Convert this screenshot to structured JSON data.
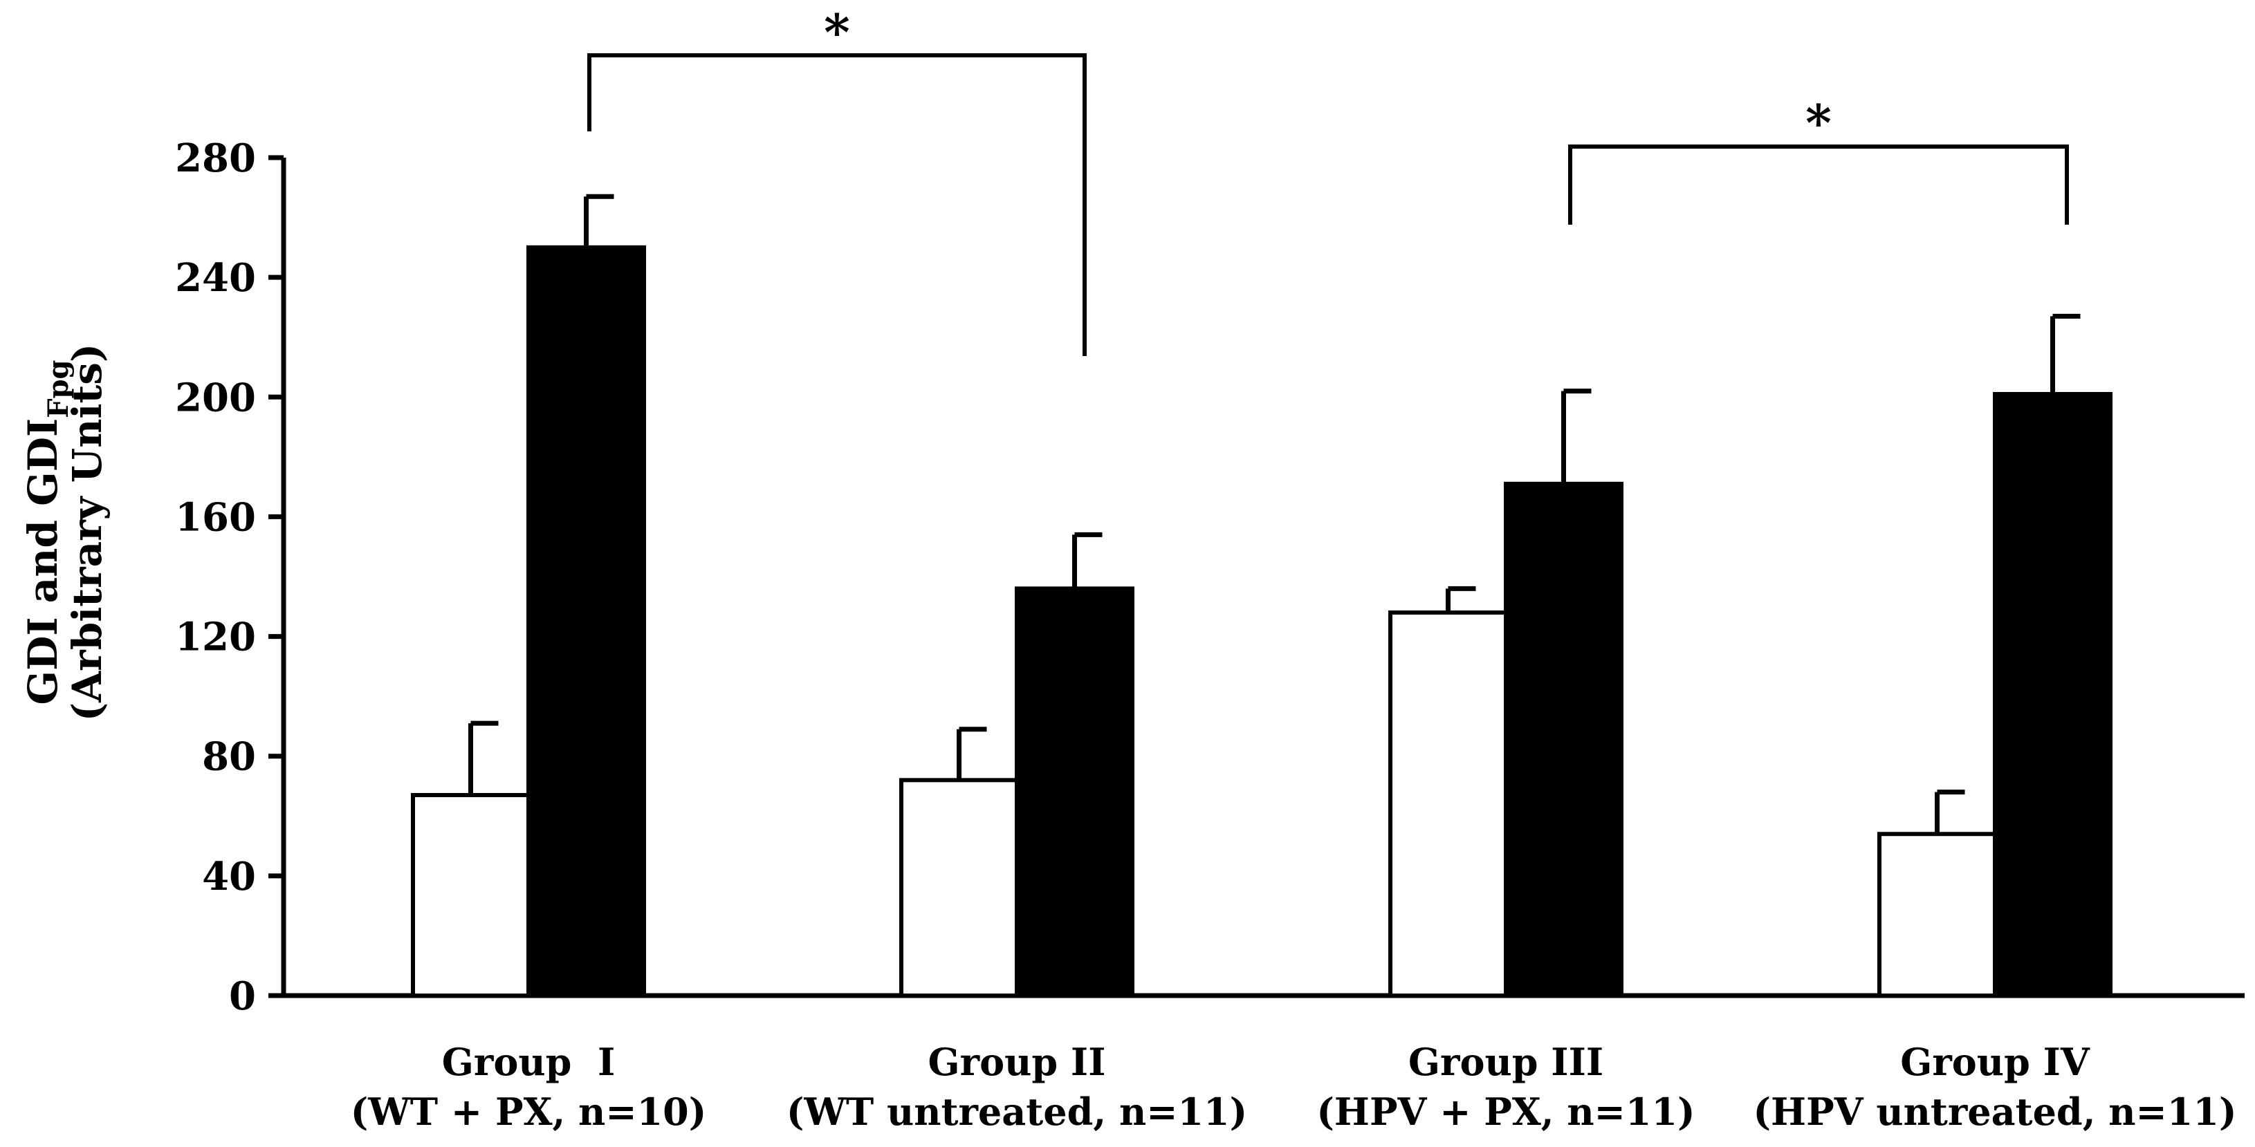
{
  "chart_data": {
    "type": "bar",
    "title": "",
    "ylabel": {
      "line1_main": "GDI and GDI",
      "line1_subscript": "Fpg",
      "line2": "(Arbitrary Units)"
    },
    "xlabel": "",
    "ylim": [
      0,
      280
    ],
    "yticks": [
      "0",
      "40",
      "80",
      "120",
      "160",
      "200",
      "240",
      "280"
    ],
    "categories": [
      {
        "name": "Group  I",
        "detail": "(WT + PX, n=10)"
      },
      {
        "name": "Group II",
        "detail": "(WT untreated, n=11)"
      },
      {
        "name": "Group III",
        "detail": "(HPV + PX, n=11)"
      },
      {
        "name": "Group IV",
        "detail": "(HPV untreated, n=11)"
      }
    ],
    "series": [
      {
        "name": "GDI",
        "color": "#ffffff",
        "values": [
          67,
          72,
          128,
          54
        ],
        "errors": [
          24,
          17,
          8,
          14
        ]
      },
      {
        "name": "GDIFpg",
        "color": "#000000",
        "values": [
          250,
          136,
          171,
          201
        ],
        "errors": [
          17,
          18,
          31,
          26
        ]
      }
    ],
    "significance": [
      {
        "label": "*",
        "from_group": 0,
        "to_group": 1
      },
      {
        "label": "*",
        "from_group": 2,
        "to_group": 3
      }
    ]
  }
}
